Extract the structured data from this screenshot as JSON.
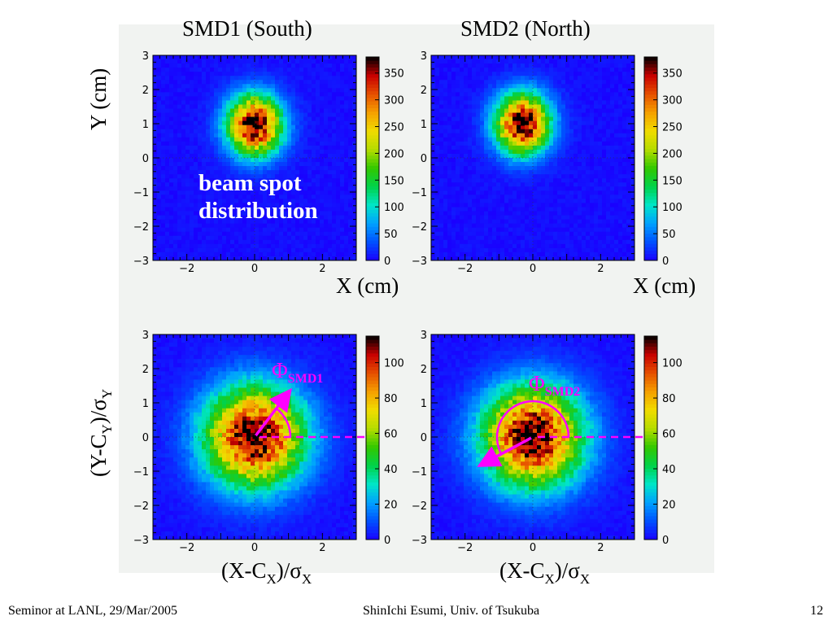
{
  "slide": {
    "footer_left": "Seminor at LANL, 29/Mar/2005",
    "footer_center": "ShinIchi Esumi, Univ. of Tsukuba",
    "footer_right": "12"
  },
  "labels": {
    "title_left": "SMD1 (South)",
    "title_right": "SMD2 (North)",
    "y_top": "Y (cm)",
    "x_top_left": "X (cm)",
    "x_top_right": "X (cm)",
    "y_bottom_main": "(Y-C",
    "y_bottom_sub": "Y",
    "y_bottom_mid": ")/σ",
    "y_bottom_sub2": "Y",
    "x_bottom_main": "(X-C",
    "x_bottom_sub": "X",
    "x_bottom_mid": ")/σ",
    "x_bottom_sub2": "X",
    "annotation_line1": "beam spot",
    "annotation_line2": "distribution",
    "phi_left_symbol": "Φ",
    "phi_left_sub": "SMD1",
    "phi_right_symbol": "Φ",
    "phi_right_sub": "SMD2"
  },
  "colors": {
    "accent_magenta": "#ff00ff",
    "frame_background": "#0026ff",
    "colormap": [
      "#1a00ff",
      "#0050ff",
      "#00a0ff",
      "#00e6c8",
      "#00d24a",
      "#32c800",
      "#b4dc00",
      "#f0dc00",
      "#f5a000",
      "#e65000",
      "#c80000",
      "#000000"
    ]
  },
  "chart_data": [
    {
      "type": "heatmap",
      "title": "SMD1 (South)",
      "xlabel": "X (cm)",
      "ylabel": "Y (cm)",
      "xlim": [
        -3,
        3
      ],
      "ylim": [
        -3,
        3
      ],
      "x_ticks": [
        -2,
        0,
        2
      ],
      "y_ticks": [
        3,
        2,
        1,
        0,
        -1,
        -2,
        -3
      ],
      "distribution": {
        "center_x": 0.0,
        "center_y": 0.95,
        "sigma_x": 0.55,
        "sigma_y": 0.6,
        "peak": 380
      },
      "colorbar": {
        "min": 0,
        "max": 380,
        "ticks": [
          0,
          50,
          100,
          150,
          200,
          250,
          300,
          350
        ]
      }
    },
    {
      "type": "heatmap",
      "title": "SMD2 (North)",
      "xlabel": "X (cm)",
      "ylim": [
        -3,
        3
      ],
      "xlim": [
        -3,
        3
      ],
      "x_ticks": [
        -2,
        0,
        2
      ],
      "y_ticks": [
        3,
        2,
        1,
        0,
        -1,
        -2,
        -3
      ],
      "distribution": {
        "center_x": -0.3,
        "center_y": 1.0,
        "sigma_x": 0.55,
        "sigma_y": 0.6,
        "peak": 380
      },
      "colorbar": {
        "min": 0,
        "max": 380,
        "ticks": [
          0,
          50,
          100,
          150,
          200,
          250,
          300,
          350
        ]
      }
    },
    {
      "type": "heatmap",
      "xlabel": "(X-C_X)/σ_X",
      "ylabel": "(Y-C_Y)/σ_Y",
      "xlim": [
        -3,
        3
      ],
      "ylim": [
        -3,
        3
      ],
      "x_ticks": [
        -2,
        0,
        2
      ],
      "y_ticks": [
        3,
        2,
        1,
        0,
        -1,
        -2,
        -3
      ],
      "distribution": {
        "center_x": 0.0,
        "center_y": 0.0,
        "sigma_x": 1.0,
        "sigma_y": 1.0,
        "peak": 115
      },
      "colorbar": {
        "min": 0,
        "max": 115,
        "ticks": [
          0,
          20,
          40,
          60,
          80,
          100
        ]
      },
      "annotation": {
        "label": "Φ_SMD1",
        "vector_from": [
          0,
          0
        ],
        "vector_to": [
          1.0,
          1.3
        ]
      }
    },
    {
      "type": "heatmap",
      "xlabel": "(X-C_X)/σ_X",
      "xlim": [
        -3,
        3
      ],
      "ylim": [
        -3,
        3
      ],
      "x_ticks": [
        -2,
        0,
        2
      ],
      "y_ticks": [
        3,
        2,
        1,
        0,
        -1,
        -2,
        -3
      ],
      "distribution": {
        "center_x": 0.0,
        "center_y": 0.0,
        "sigma_x": 1.0,
        "sigma_y": 1.0,
        "peak": 115
      },
      "colorbar": {
        "min": 0,
        "max": 115,
        "ticks": [
          0,
          20,
          40,
          60,
          80,
          100
        ]
      },
      "annotation": {
        "label": "Φ_SMD2",
        "vector_from": [
          0,
          0
        ],
        "vector_to": [
          -1.5,
          -0.8
        ]
      }
    }
  ]
}
